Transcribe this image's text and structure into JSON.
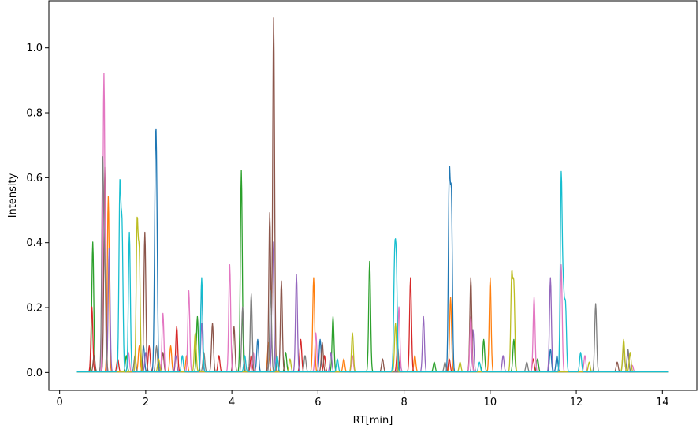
{
  "chart_data": {
    "type": "line",
    "xlabel": "RT[min]",
    "ylabel": "Intensity",
    "xlim": [
      -0.25,
      14.8
    ],
    "ylim": [
      -0.055,
      1.145
    ],
    "x_ticks": [
      0,
      2,
      4,
      6,
      8,
      10,
      12,
      14
    ],
    "x_tick_labels": [
      "0",
      "2",
      "4",
      "6",
      "8",
      "10",
      "12",
      "14"
    ],
    "y_ticks": [
      0.0,
      0.2,
      0.4,
      0.6,
      0.8,
      1.0
    ],
    "y_tick_labels": [
      "0.0",
      "0.2",
      "0.4",
      "0.6",
      "0.8",
      "1.0"
    ],
    "grid": false,
    "legend": "none",
    "palette": [
      "#1f77b4",
      "#ff7f0e",
      "#2ca02c",
      "#d62728",
      "#9467bd",
      "#8c564b",
      "#e377c2",
      "#7f7f7f",
      "#bcbd22",
      "#17becf"
    ],
    "x_range": [
      0.4,
      14.15
    ],
    "series": [
      {
        "color": "#1f77b4",
        "peaks": [
          [
            2.25,
            0.5
          ],
          [
            2.22,
            0.45
          ],
          [
            3.3,
            0.27
          ],
          [
            6.05,
            0.1
          ],
          [
            9.05,
            0.59
          ],
          [
            9.1,
            0.52
          ],
          [
            11.4,
            0.07
          ],
          [
            11.55,
            0.05
          ],
          [
            1.95,
            0.08
          ],
          [
            4.6,
            0.1
          ],
          [
            7.9,
            0.03
          ]
        ]
      },
      {
        "color": "#ff7f0e",
        "peaks": [
          [
            1.13,
            0.54
          ],
          [
            2.58,
            0.08
          ],
          [
            5.9,
            0.29
          ],
          [
            9.08,
            0.23
          ],
          [
            10.0,
            0.29
          ],
          [
            1.85,
            0.08
          ],
          [
            2.95,
            0.05
          ],
          [
            4.85,
            0.09
          ],
          [
            6.6,
            0.04
          ],
          [
            8.25,
            0.05
          ]
        ]
      },
      {
        "color": "#2ca02c",
        "peaks": [
          [
            0.77,
            0.4
          ],
          [
            4.22,
            0.62
          ],
          [
            6.35,
            0.17
          ],
          [
            7.2,
            0.34
          ],
          [
            9.85,
            0.1
          ],
          [
            10.55,
            0.1
          ],
          [
            1.55,
            0.05
          ],
          [
            3.2,
            0.17
          ],
          [
            5.25,
            0.06
          ],
          [
            8.7,
            0.03
          ],
          [
            11.1,
            0.04
          ]
        ]
      },
      {
        "color": "#d62728",
        "peaks": [
          [
            0.75,
            0.2
          ],
          [
            2.08,
            0.08
          ],
          [
            2.72,
            0.14
          ],
          [
            5.6,
            0.1
          ],
          [
            7.85,
            0.08
          ],
          [
            8.15,
            0.29
          ],
          [
            9.05,
            0.04
          ],
          [
            1.35,
            0.04
          ],
          [
            3.7,
            0.05
          ],
          [
            4.45,
            0.05
          ],
          [
            6.15,
            0.05
          ],
          [
            11.0,
            0.04
          ]
        ]
      },
      {
        "color": "#9467bd",
        "peaks": [
          [
            1.15,
            0.38
          ],
          [
            2.0,
            0.06
          ],
          [
            3.3,
            0.15
          ],
          [
            4.95,
            0.4
          ],
          [
            5.5,
            0.3
          ],
          [
            8.45,
            0.17
          ],
          [
            9.6,
            0.13
          ],
          [
            11.4,
            0.29
          ],
          [
            13.2,
            0.06
          ],
          [
            2.7,
            0.05
          ],
          [
            6.3,
            0.06
          ],
          [
            10.3,
            0.05
          ]
        ]
      },
      {
        "color": "#8c564b",
        "peaks": [
          [
            1.05,
            0.63
          ],
          [
            1.98,
            0.43
          ],
          [
            3.55,
            0.15
          ],
          [
            4.05,
            0.14
          ],
          [
            4.97,
            1.09
          ],
          [
            4.88,
            0.49
          ],
          [
            5.15,
            0.28
          ],
          [
            6.1,
            0.09
          ],
          [
            9.55,
            0.29
          ],
          [
            0.8,
            0.05
          ],
          [
            2.4,
            0.06
          ],
          [
            7.5,
            0.04
          ],
          [
            12.95,
            0.03
          ]
        ]
      },
      {
        "color": "#e377c2",
        "peaks": [
          [
            1.03,
            0.92
          ],
          [
            2.4,
            0.18
          ],
          [
            3.0,
            0.25
          ],
          [
            3.95,
            0.33
          ],
          [
            5.95,
            0.12
          ],
          [
            7.88,
            0.2
          ],
          [
            9.55,
            0.17
          ],
          [
            11.02,
            0.23
          ],
          [
            11.65,
            0.33
          ],
          [
            1.6,
            0.06
          ],
          [
            4.5,
            0.06
          ],
          [
            6.8,
            0.05
          ],
          [
            12.2,
            0.05
          ],
          [
            13.3,
            0.02
          ]
        ]
      },
      {
        "color": "#7f7f7f",
        "peaks": [
          [
            1.0,
            0.64
          ],
          [
            1.05,
            0.3
          ],
          [
            2.25,
            0.08
          ],
          [
            4.25,
            0.2
          ],
          [
            4.45,
            0.24
          ],
          [
            4.9,
            0.25
          ],
          [
            12.45,
            0.21
          ],
          [
            13.1,
            0.08
          ],
          [
            13.2,
            0.07
          ],
          [
            1.75,
            0.05
          ],
          [
            3.35,
            0.06
          ],
          [
            5.7,
            0.05
          ],
          [
            8.95,
            0.03
          ],
          [
            10.85,
            0.03
          ]
        ]
      },
      {
        "color": "#bcbd22",
        "peaks": [
          [
            1.8,
            0.45
          ],
          [
            1.85,
            0.35
          ],
          [
            3.15,
            0.12
          ],
          [
            6.8,
            0.12
          ],
          [
            7.8,
            0.15
          ],
          [
            10.5,
            0.29
          ],
          [
            10.55,
            0.26
          ],
          [
            13.1,
            0.1
          ],
          [
            13.25,
            0.06
          ],
          [
            2.3,
            0.04
          ],
          [
            5.35,
            0.04
          ],
          [
            9.3,
            0.03
          ],
          [
            12.3,
            0.03
          ]
        ]
      },
      {
        "color": "#17becf",
        "peaks": [
          [
            1.4,
            0.56
          ],
          [
            1.45,
            0.43
          ],
          [
            1.62,
            0.43
          ],
          [
            3.3,
            0.29
          ],
          [
            4.3,
            0.05
          ],
          [
            7.78,
            0.32
          ],
          [
            7.82,
            0.3
          ],
          [
            11.65,
            0.6
          ],
          [
            11.7,
            0.23
          ],
          [
            11.75,
            0.2
          ],
          [
            2.85,
            0.05
          ],
          [
            5.05,
            0.05
          ],
          [
            6.45,
            0.04
          ],
          [
            9.75,
            0.03
          ],
          [
            12.1,
            0.06
          ]
        ]
      }
    ]
  }
}
